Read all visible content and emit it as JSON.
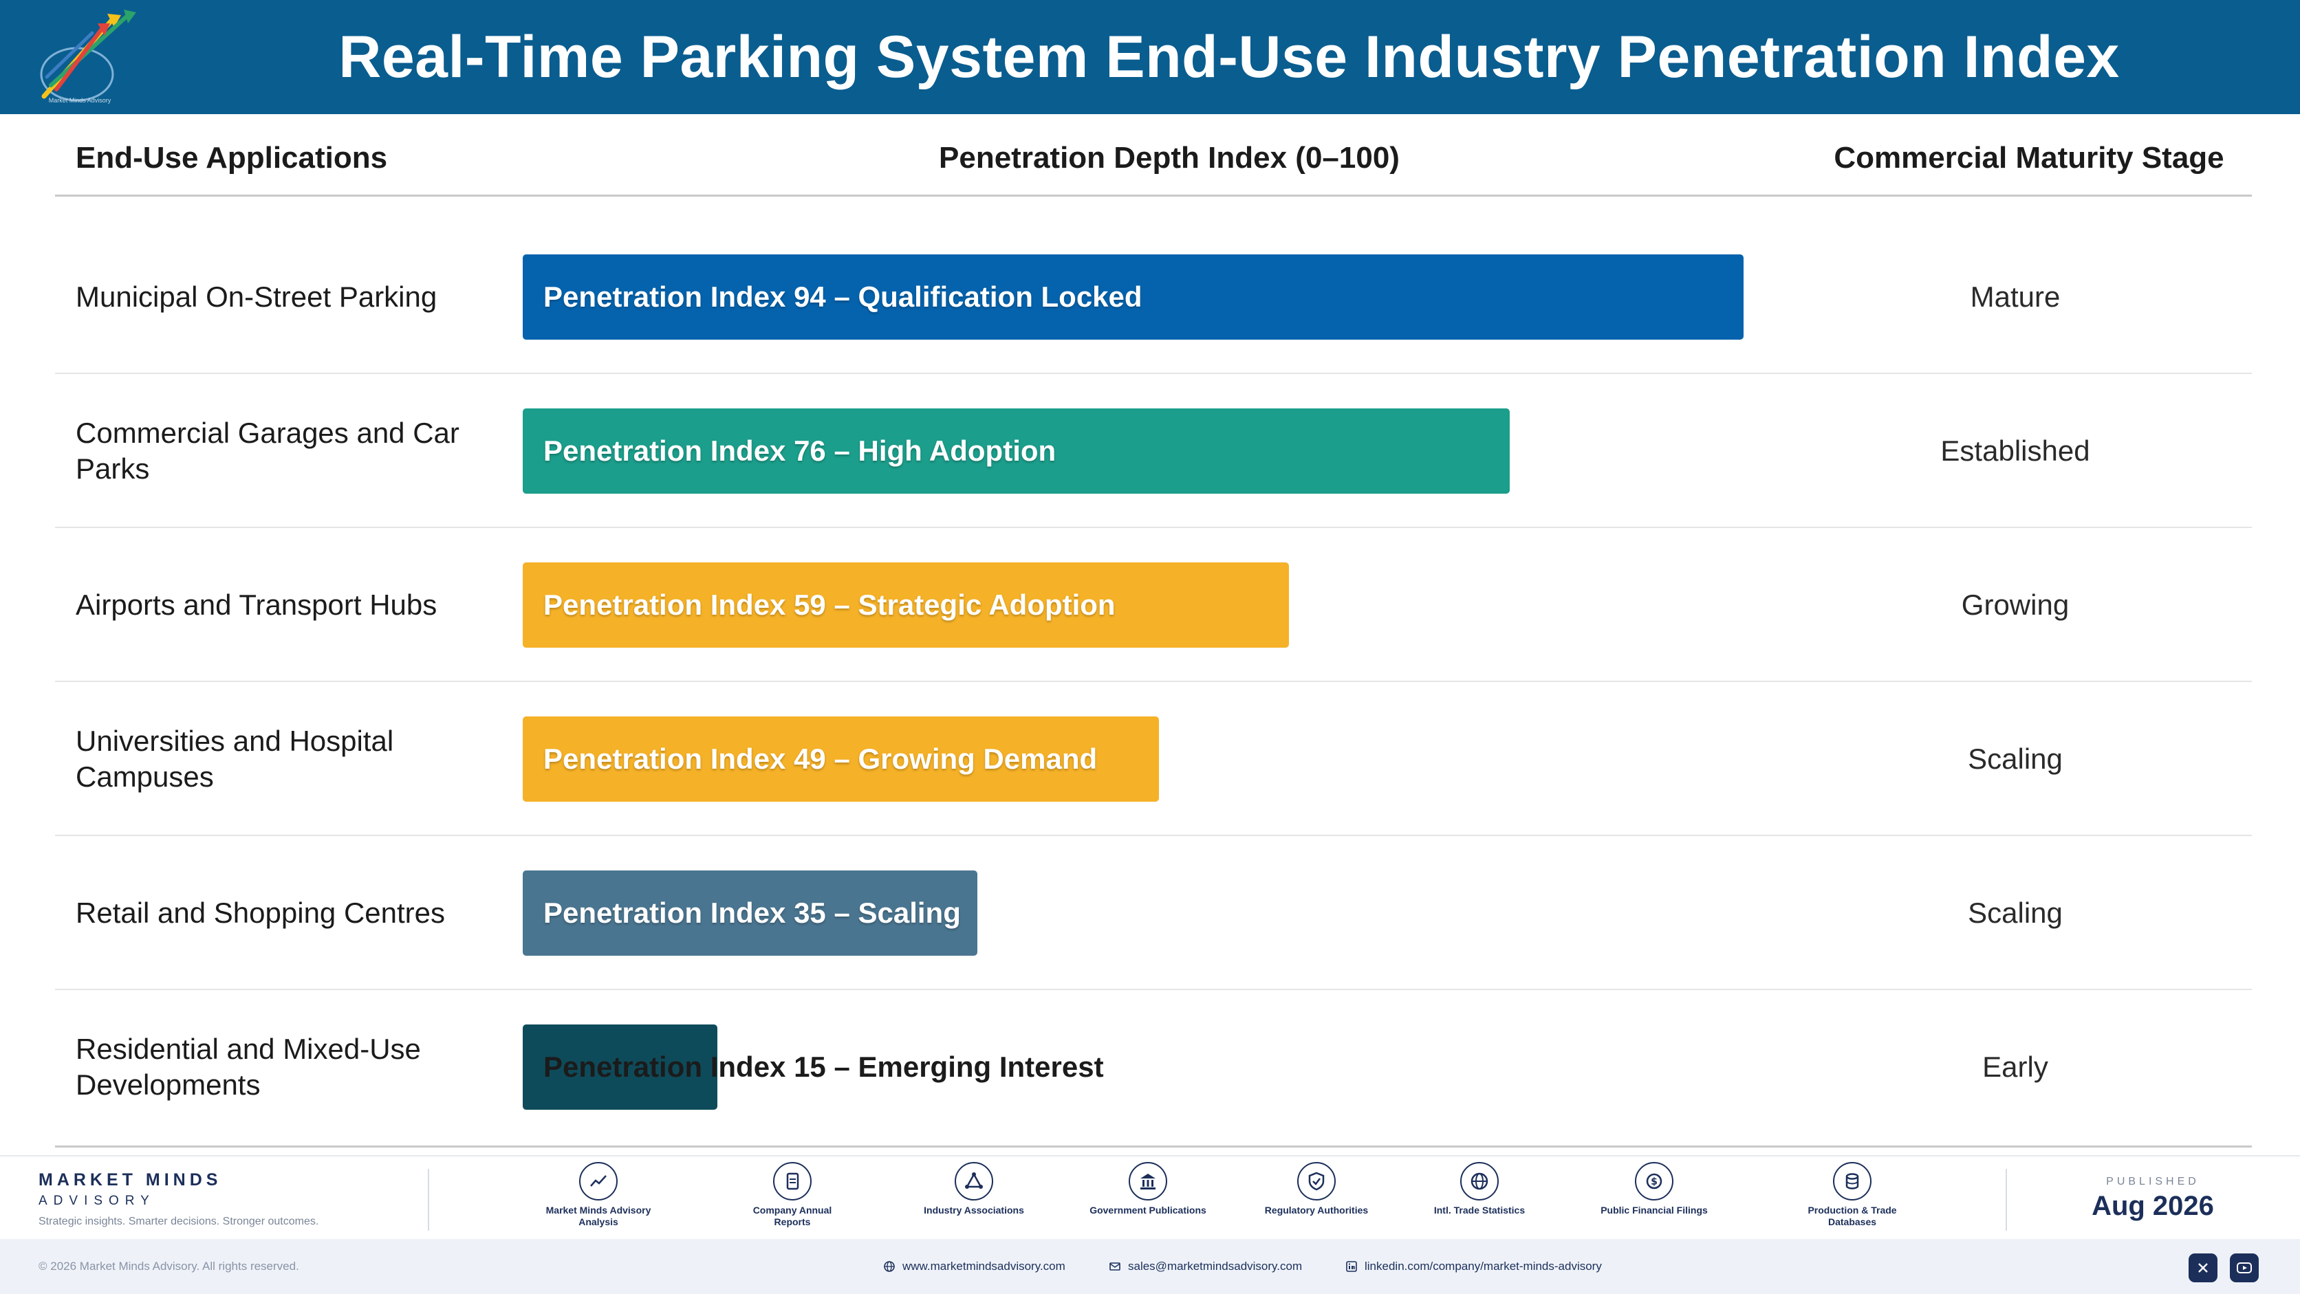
{
  "header": {
    "title": "Real-Time Parking System End-Use Industry Penetration Index",
    "logo_caption": "Market Minds Advisory",
    "logo_icon": "rising-arrows-logo"
  },
  "columns": {
    "applications": "End-Use Applications",
    "index": "Penetration Depth Index (0–100)",
    "stage": "Commercial Maturity Stage"
  },
  "chart_data": {
    "type": "bar",
    "orientation": "horizontal",
    "title": "Real-Time Parking System End-Use Industry Penetration Index",
    "xlabel": "Penetration Depth Index (0–100)",
    "xlim": [
      0,
      100
    ],
    "categories": [
      "Municipal On-Street Parking",
      "Commercial Garages and Car Parks",
      "Airports and Transport Hubs",
      "Universities and Hospital Campuses",
      "Retail and Shopping Centres",
      "Residential and Mixed-Use Developments"
    ],
    "values": [
      94,
      76,
      59,
      49,
      35,
      15
    ],
    "bar_labels": [
      "Penetration Index 94 – Qualification Locked",
      "Penetration Index 76 – High Adoption",
      "Penetration Index 59 – Strategic Adoption",
      "Penetration Index 49 – Growing Demand",
      "Penetration Index 35 – Scaling",
      "Penetration Index 15 – Emerging Interest"
    ],
    "maturity_stage": [
      "Mature",
      "Established",
      "Growing",
      "Scaling",
      "Scaling",
      "Early"
    ],
    "colors": [
      "#0563ad",
      "#1b9e8b",
      "#f5b127",
      "#f5b127",
      "#4a7590",
      "#0e4b5a"
    ],
    "grid": false
  },
  "footer": {
    "brand_name": "MARKET MINDS",
    "brand_sub": "ADVISORY",
    "tagline": "Strategic insights. Smarter decisions. Stronger outcomes.",
    "sources": [
      {
        "label": "Market Minds Advisory Analysis",
        "icon": "chart-line-icon"
      },
      {
        "label": "Company Annual Reports",
        "icon": "document-icon"
      },
      {
        "label": "Industry Associations",
        "icon": "network-icon"
      },
      {
        "label": "Government Publications",
        "icon": "government-building-icon"
      },
      {
        "label": "Regulatory Authorities",
        "icon": "shield-check-icon"
      },
      {
        "label": "Intl. Trade Statistics",
        "icon": "globe-icon"
      },
      {
        "label": "Public Financial Filings",
        "icon": "coin-icon"
      },
      {
        "label": "Production & Trade Databases",
        "icon": "database-icon"
      }
    ],
    "published_label": "PUBLISHED",
    "published_date": "Aug 2026"
  },
  "bottom_bar": {
    "copyright": "© 2026 Market Minds Advisory. All rights reserved.",
    "website": "www.marketmindsadvisory.com",
    "email": "sales@marketmindsadvisory.com",
    "linkedin": "linkedin.com/company/market-minds-advisory",
    "social": [
      {
        "icon": "x-twitter-icon"
      },
      {
        "icon": "youtube-icon"
      }
    ]
  }
}
